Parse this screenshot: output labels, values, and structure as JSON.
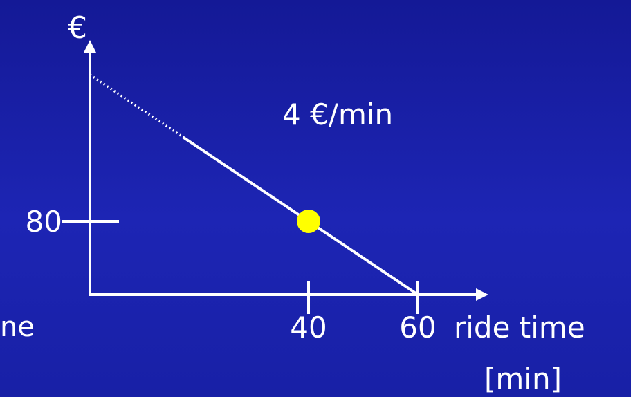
{
  "chart_data": {
    "type": "line",
    "ylabel": "€",
    "xlabel_line1": "ride time",
    "xlabel_line2": "[min]",
    "partial_left_label": "ne",
    "annotation": "4 €/min",
    "x_ticks": [
      "40",
      "60"
    ],
    "y_ticks": [
      "80"
    ],
    "xlim": [
      0,
      80
    ],
    "ylim": [
      0,
      240
    ],
    "series": [
      {
        "style": "dotted",
        "x": [
          0,
          17
        ],
        "y": [
          240,
          172
        ]
      },
      {
        "style": "solid",
        "x": [
          17,
          60
        ],
        "y": [
          172,
          0
        ]
      }
    ],
    "highlight_point": {
      "x": 40,
      "y": 80,
      "color": "#ffff00"
    },
    "colors": {
      "line": "#ffffff",
      "point": "#ffff00",
      "background": "#1a1fa8"
    }
  }
}
